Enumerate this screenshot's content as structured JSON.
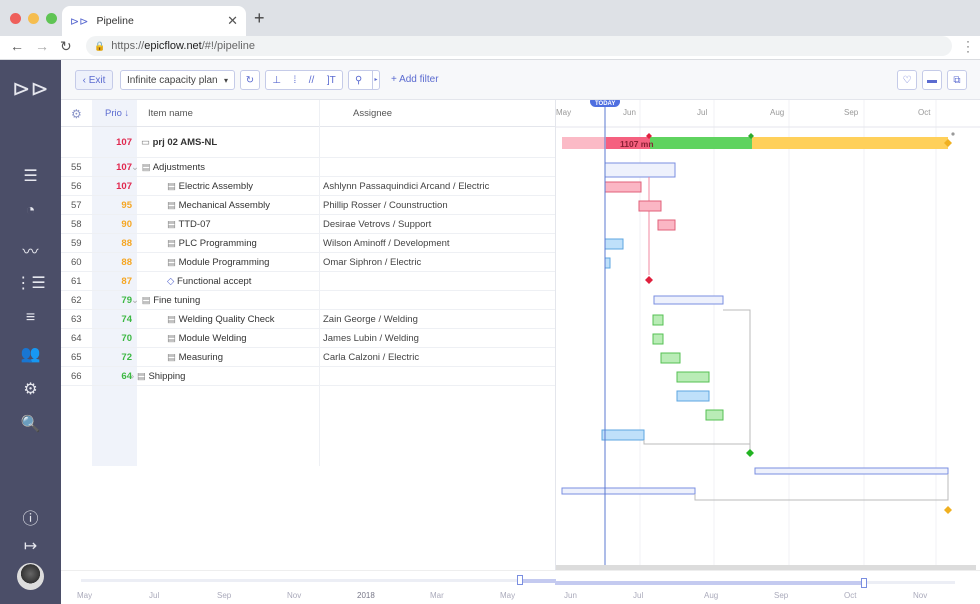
{
  "browser": {
    "tab_title": "Pipeline",
    "url_prefix": "https://",
    "url_domain": "epicflow.net",
    "url_path": "/#!/pipeline"
  },
  "toolbar": {
    "exit_label": "‹ Exit",
    "plan_select": "Infinite capacity plan",
    "add_filter": "+ Add filter"
  },
  "grid": {
    "headers": {
      "prio": "Prio",
      "item": "Item name",
      "assignee": "Assignee"
    },
    "project": {
      "prio": "107",
      "name": "prj 02 AMS-NL"
    },
    "rows": [
      {
        "num": "55",
        "prio": "107",
        "name": "Adjustments",
        "assignee": "",
        "level": 0,
        "type": "group",
        "color": "#e0284f"
      },
      {
        "num": "56",
        "prio": "107",
        "name": "Electric Assembly",
        "assignee": "Ashlynn Passaquindici Arcand / Electric",
        "level": 1,
        "type": "task",
        "color": "#e0284f"
      },
      {
        "num": "57",
        "prio": "95",
        "name": "Mechanical Assembly",
        "assignee": "Phillip Rosser / Counstruction",
        "level": 1,
        "type": "task",
        "color": "#f5a623"
      },
      {
        "num": "58",
        "prio": "90",
        "name": "TTD-07",
        "assignee": "Desirae Vetrovs / Support",
        "level": 1,
        "type": "task",
        "color": "#f5a623"
      },
      {
        "num": "59",
        "prio": "88",
        "name": "PLC Programming",
        "assignee": "Wilson Aminoff / Development",
        "level": 1,
        "type": "task",
        "color": "#f5a623"
      },
      {
        "num": "60",
        "prio": "88",
        "name": "Module Programming",
        "assignee": "Omar Siphron / Electric",
        "level": 1,
        "type": "task",
        "color": "#f5a623"
      },
      {
        "num": "61",
        "prio": "87",
        "name": "Functional accept",
        "assignee": "",
        "level": 1,
        "type": "milestone",
        "color": "#f5a623"
      },
      {
        "num": "62",
        "prio": "79",
        "name": "Fine tuning",
        "assignee": "",
        "level": 0,
        "type": "group",
        "color": "#3cb843"
      },
      {
        "num": "63",
        "prio": "74",
        "name": "Welding Quality Check",
        "assignee": "Zain George / Welding",
        "level": 1,
        "type": "task",
        "color": "#3cb843"
      },
      {
        "num": "64",
        "prio": "70",
        "name": "Module Welding",
        "assignee": "James Lubin / Welding",
        "level": 1,
        "type": "task",
        "color": "#3cb843"
      },
      {
        "num": "65",
        "prio": "72",
        "name": "Measuring",
        "assignee": "Carla Calzoni / Electric",
        "level": 1,
        "type": "task",
        "color": "#3cb843"
      },
      {
        "num": "66",
        "prio": "64",
        "name": "Shipping",
        "assignee": "",
        "level": 0,
        "type": "group-collapsed",
        "color": "#3cb843"
      }
    ]
  },
  "gantt": {
    "today_label": "TODAY",
    "months": [
      "May",
      "Jun",
      "Jul",
      "Aug",
      "Sep",
      "Oct"
    ],
    "summary_label": "1107 mn"
  },
  "timeline_left": {
    "labels": [
      "May",
      "Jul",
      "Sep",
      "Nov",
      "2018",
      "Mar",
      "May"
    ]
  },
  "timeline_right": {
    "labels": [
      "Jun",
      "Jul",
      "Aug",
      "Sep",
      "Oct",
      "Nov"
    ]
  }
}
